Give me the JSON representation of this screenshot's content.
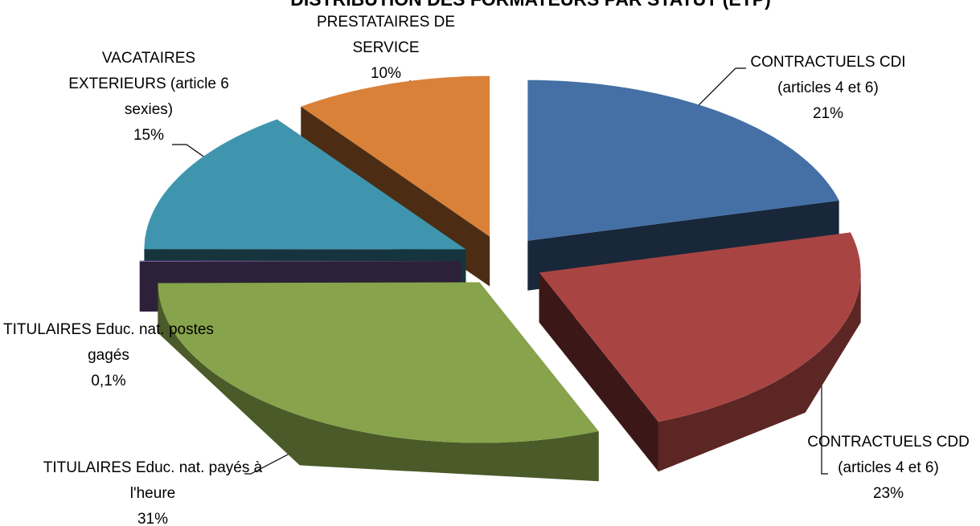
{
  "chart_data": {
    "type": "pie3d",
    "title": "DISTRIBUTION DES FORMATEURS PAR STATUT (ETP)",
    "categories": [
      "CONTRACTUELS CDI (articles 4 et 6)",
      "CONTRACTUELS CDD (articles 4 et 6)",
      "TITULAIRES Educ. nat. payés à l'heure",
      "TITULAIRES Educ. nat. postes gagés",
      "VACATAIRES EXTERIEURS (article 6 sexies)",
      "PRESTATAIRES DE SERVICE"
    ],
    "values": [
      21,
      23,
      31,
      0.1,
      15,
      10
    ],
    "value_labels": [
      "21%",
      "23%",
      "31%",
      "0,1%",
      "15%",
      "10%"
    ],
    "colors": [
      "#4470a5",
      "#a84543",
      "#87a34b",
      "#7d5fa0",
      "#3f95ae",
      "#d98039"
    ]
  }
}
